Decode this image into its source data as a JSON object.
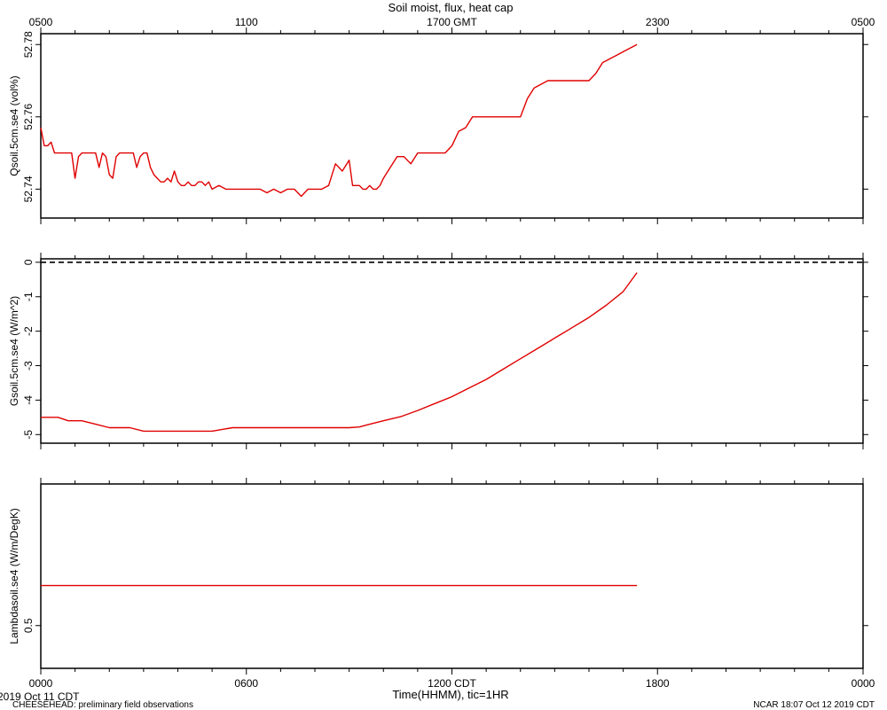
{
  "chart_data": {
    "type": "line",
    "title": "Soil moist, flux, heat cap",
    "x_range_hours": [
      0,
      24
    ],
    "top_axis": {
      "ticks": [
        {
          "t": 0,
          "label": "0500"
        },
        {
          "t": 6,
          "label": "1100"
        },
        {
          "t": 12,
          "label": "1700 GMT"
        },
        {
          "t": 18,
          "label": "2300"
        },
        {
          "t": 24,
          "label": "0500"
        }
      ]
    },
    "bottom_axis": {
      "ticks": [
        {
          "t": 0,
          "label": "0000"
        },
        {
          "t": 6,
          "label": "0600"
        },
        {
          "t": 12,
          "label": "1200 CDT"
        },
        {
          "t": 18,
          "label": "1800"
        },
        {
          "t": 24,
          "label": "0000"
        }
      ],
      "xlabel": "Time(HHMM), tic=1HR"
    },
    "line_color": "#e00000",
    "panels": [
      {
        "ylabel": "Qsoil.5cm.se4 (vol%)",
        "ylim": [
          52.732,
          52.783
        ],
        "yticks": [
          52.74,
          52.76,
          52.78
        ],
        "ytick_labels": [
          "52.74",
          "52.76",
          "52.78"
        ],
        "x": [
          0,
          0.1,
          0.2,
          0.3,
          0.4,
          0.5,
          0.6,
          0.7,
          0.8,
          0.9,
          1.0,
          1.1,
          1.2,
          1.3,
          1.4,
          1.5,
          1.6,
          1.7,
          1.8,
          1.9,
          2.0,
          2.1,
          2.2,
          2.3,
          2.4,
          2.5,
          2.6,
          2.7,
          2.8,
          2.9,
          3.0,
          3.1,
          3.2,
          3.3,
          3.4,
          3.5,
          3.6,
          3.7,
          3.8,
          3.9,
          4.0,
          4.1,
          4.2,
          4.3,
          4.4,
          4.5,
          4.6,
          4.7,
          4.8,
          4.9,
          5.0,
          5.2,
          5.4,
          5.6,
          5.8,
          6.0,
          6.2,
          6.4,
          6.6,
          6.8,
          7.0,
          7.2,
          7.4,
          7.6,
          7.8,
          8.0,
          8.2,
          8.4,
          8.6,
          8.8,
          9.0,
          9.1,
          9.2,
          9.3,
          9.4,
          9.5,
          9.6,
          9.7,
          9.8,
          9.9,
          10.0,
          10.2,
          10.4,
          10.6,
          10.8,
          11.0,
          11.2,
          11.4,
          11.6,
          11.8,
          12.0,
          12.2,
          12.4,
          12.6,
          12.8,
          13.0,
          13.2,
          13.4,
          13.6,
          13.8,
          14.0,
          14.2,
          14.4,
          14.6,
          14.8,
          15.0,
          15.2,
          15.4,
          15.6,
          15.8,
          16.0,
          16.2,
          16.4,
          16.6,
          16.8,
          17.0,
          17.2,
          17.4
        ],
        "y": [
          52.757,
          52.752,
          52.752,
          52.753,
          52.75,
          52.75,
          52.75,
          52.75,
          52.75,
          52.75,
          52.743,
          52.749,
          52.75,
          52.75,
          52.75,
          52.75,
          52.75,
          52.746,
          52.75,
          52.749,
          52.744,
          52.743,
          52.749,
          52.75,
          52.75,
          52.75,
          52.75,
          52.75,
          52.746,
          52.749,
          52.75,
          52.75,
          52.746,
          52.744,
          52.743,
          52.742,
          52.742,
          52.743,
          52.742,
          52.745,
          52.742,
          52.741,
          52.741,
          52.742,
          52.741,
          52.741,
          52.742,
          52.742,
          52.741,
          52.742,
          52.74,
          52.741,
          52.74,
          52.74,
          52.74,
          52.74,
          52.74,
          52.74,
          52.739,
          52.74,
          52.739,
          52.74,
          52.74,
          52.738,
          52.74,
          52.74,
          52.74,
          52.741,
          52.747,
          52.745,
          52.748,
          52.741,
          52.741,
          52.741,
          52.74,
          52.74,
          52.741,
          52.74,
          52.74,
          52.741,
          52.743,
          52.746,
          52.749,
          52.749,
          52.747,
          52.75,
          52.75,
          52.75,
          52.75,
          52.75,
          52.752,
          52.756,
          52.757,
          52.76,
          52.76,
          52.76,
          52.76,
          52.76,
          52.76,
          52.76,
          52.76,
          52.765,
          52.768,
          52.769,
          52.77,
          52.77,
          52.77,
          52.77,
          52.77,
          52.77,
          52.77,
          52.772,
          52.775,
          52.776,
          52.777,
          52.778,
          52.779,
          52.78
        ]
      },
      {
        "ylabel": "Gsoil.5cm.se4 (W/m^2)",
        "ylim": [
          -5.25,
          0.1
        ],
        "yticks": [
          0,
          -1,
          -2,
          -3,
          -4,
          -5
        ],
        "ytick_labels": [
          "0",
          "-1",
          "-2",
          "-3",
          "-4",
          "-5"
        ],
        "reference_line": 0,
        "x": [
          0,
          0.5,
          0.8,
          1.2,
          1.6,
          2.0,
          2.3,
          2.6,
          3.0,
          3.5,
          4.0,
          4.5,
          5.0,
          5.3,
          5.6,
          6.0,
          6.5,
          7.0,
          7.5,
          8.0,
          8.5,
          9.0,
          9.3,
          9.6,
          10.0,
          10.5,
          11.0,
          11.5,
          12.0,
          12.5,
          13.0,
          13.5,
          14.0,
          14.5,
          15.0,
          15.5,
          16.0,
          16.5,
          17.0,
          17.4
        ],
        "y": [
          -4.5,
          -4.5,
          -4.6,
          -4.6,
          -4.7,
          -4.8,
          -4.8,
          -4.8,
          -4.9,
          -4.9,
          -4.9,
          -4.9,
          -4.9,
          -4.85,
          -4.8,
          -4.8,
          -4.8,
          -4.8,
          -4.8,
          -4.8,
          -4.8,
          -4.8,
          -4.78,
          -4.7,
          -4.6,
          -4.48,
          -4.3,
          -4.1,
          -3.9,
          -3.65,
          -3.4,
          -3.1,
          -2.8,
          -2.5,
          -2.2,
          -1.9,
          -1.6,
          -1.25,
          -0.85,
          -0.3
        ]
      },
      {
        "ylabel": "Lambdasoil.se4 (W/m/DegK)",
        "ylim": [
          0.468,
          0.606
        ],
        "yticks": [
          0.5
        ],
        "ytick_labels": [
          "0.5"
        ],
        "x": [
          0,
          17.4
        ],
        "y": [
          0.53,
          0.53
        ]
      }
    ]
  },
  "footer": {
    "date_left": "2019 Oct 11 CDT",
    "project": "CHEESEHEAD: preliminary field observations",
    "credit": "NCAR 18:07 Oct 12 2019 CDT"
  }
}
